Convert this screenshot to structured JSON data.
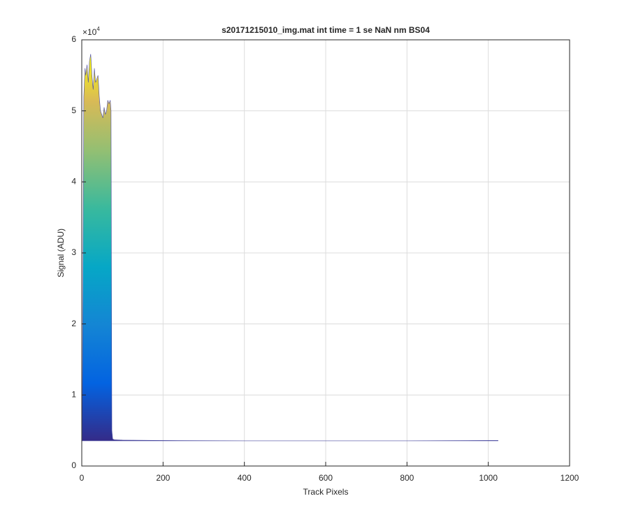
{
  "chart_data": {
    "type": "area",
    "title": "s20171215010_img.mat int time = 1 se  NaN nm BS04",
    "x_label": "Track Pixels",
    "y_label": "Signal (ADU)",
    "y_exponent": {
      "base": "×10",
      "power": "4"
    },
    "x": [
      1,
      5,
      8,
      10,
      13,
      16,
      19,
      22,
      25,
      28,
      31,
      34,
      37,
      40,
      43,
      46,
      49,
      52,
      55,
      58,
      61,
      64,
      67,
      70,
      72,
      74,
      76,
      80,
      100,
      200,
      400,
      600,
      800,
      1000,
      1024
    ],
    "values": [
      0.37,
      5.2,
      5.6,
      5.5,
      5.65,
      5.4,
      5.7,
      5.8,
      5.5,
      5.3,
      5.6,
      5.4,
      5.45,
      5.5,
      5.2,
      5.0,
      4.95,
      4.9,
      5.05,
      4.95,
      5.0,
      5.15,
      5.1,
      5.15,
      5.0,
      0.5,
      0.38,
      0.37,
      0.365,
      0.36,
      0.355,
      0.355,
      0.355,
      0.36,
      0.36
    ],
    "xlim": [
      0,
      1200
    ],
    "xticks": [
      0,
      200,
      400,
      600,
      800,
      1000,
      1200
    ],
    "ylim": [
      0,
      6
    ],
    "yticks": [
      0,
      1,
      2,
      3,
      4,
      5,
      6
    ],
    "grid": true
  }
}
